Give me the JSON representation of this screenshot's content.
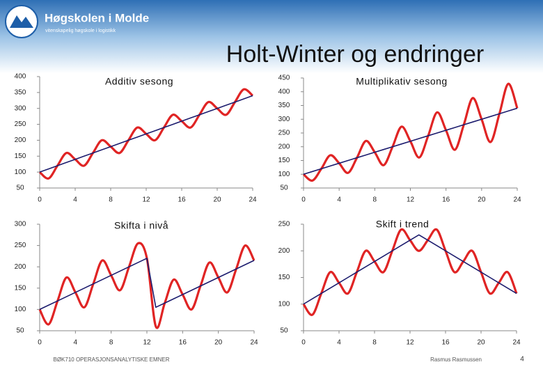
{
  "slide": {
    "title": "Holt-Winter og endringer",
    "logo_name": "Høgskolen i Molde",
    "logo_tagline": "vitenskapelig høgskole i logistikk",
    "footer_left": "BØK710 OPERASJONSANALYTISKE EMNER",
    "footer_author": "Rasmus Rasmussen",
    "page_number": 4
  },
  "chart_data": [
    {
      "type": "line",
      "title": "Additiv sesong",
      "x": [
        0,
        1,
        2,
        3,
        4,
        5,
        6,
        7,
        8,
        9,
        10,
        11,
        12,
        13,
        14,
        15,
        16,
        17,
        18,
        19,
        20,
        21,
        22,
        23,
        24
      ],
      "xlim": [
        0,
        24
      ],
      "xticks": [
        0,
        4,
        8,
        12,
        16,
        20,
        24
      ],
      "ylim": [
        50,
        400
      ],
      "yticks": [
        50,
        100,
        150,
        200,
        250,
        300,
        350,
        400
      ],
      "grid": false,
      "series": [
        {
          "color": "#e02424",
          "values": [
            100,
            80,
            120,
            160,
            140,
            120,
            160,
            200,
            180,
            160,
            200,
            240,
            220,
            200,
            240,
            280,
            260,
            240,
            280,
            320,
            300,
            280,
            320,
            360,
            340
          ]
        },
        {
          "color": "#1c1c6e",
          "values": [
            100,
            110,
            120,
            130,
            140,
            150,
            160,
            170,
            180,
            190,
            200,
            210,
            220,
            230,
            240,
            250,
            260,
            270,
            280,
            290,
            300,
            310,
            320,
            330,
            340
          ]
        }
      ]
    },
    {
      "type": "line",
      "title": "Multiplikativ sesong",
      "x": [
        0,
        1,
        2,
        3,
        4,
        5,
        6,
        7,
        8,
        9,
        10,
        11,
        12,
        13,
        14,
        15,
        16,
        17,
        18,
        19,
        20,
        21,
        22,
        23,
        24
      ],
      "xlim": [
        0,
        24
      ],
      "xticks": [
        0,
        4,
        8,
        12,
        16,
        20,
        24
      ],
      "ylim": [
        50,
        450
      ],
      "yticks": [
        50,
        100,
        150,
        200,
        250,
        300,
        350,
        400,
        450
      ],
      "grid": false,
      "series": [
        {
          "color": "#e02424",
          "values": [
            100,
            77,
            120,
            169,
            140,
            105,
            160,
            221,
            180,
            133,
            200,
            273,
            220,
            161,
            240,
            325,
            260,
            189,
            280,
            377,
            300,
            217,
            320,
            429,
            340
          ]
        },
        {
          "color": "#1c1c6e",
          "values": [
            100,
            110,
            120,
            130,
            140,
            150,
            160,
            170,
            180,
            190,
            200,
            210,
            220,
            230,
            240,
            250,
            260,
            270,
            280,
            290,
            300,
            310,
            320,
            330,
            340
          ]
        }
      ]
    },
    {
      "type": "line",
      "title": "Skifta i nivå",
      "x": [
        0,
        1,
        2,
        3,
        4,
        5,
        6,
        7,
        8,
        9,
        10,
        11,
        12,
        13,
        14,
        15,
        16,
        17,
        18,
        19,
        20,
        21,
        22,
        23,
        24
      ],
      "xlim": [
        0,
        24
      ],
      "xticks": [
        0,
        4,
        8,
        12,
        16,
        20,
        24
      ],
      "ylim": [
        50,
        300
      ],
      "yticks": [
        50,
        100,
        150,
        200,
        250,
        300
      ],
      "grid": false,
      "series": [
        {
          "color": "#e02424",
          "values": [
            100,
            65,
            120,
            175,
            140,
            105,
            160,
            215,
            180,
            145,
            200,
            255,
            220,
            60,
            115,
            170,
            135,
            100,
            155,
            210,
            175,
            140,
            195,
            250,
            215
          ]
        },
        {
          "color": "#1c1c6e",
          "values": [
            100,
            110,
            120,
            130,
            140,
            150,
            160,
            170,
            180,
            190,
            200,
            210,
            220,
            105,
            115,
            125,
            135,
            145,
            155,
            165,
            175,
            185,
            195,
            205,
            215
          ]
        }
      ]
    },
    {
      "type": "line",
      "title": "Skift i trend",
      "x": [
        0,
        1,
        2,
        3,
        4,
        5,
        6,
        7,
        8,
        9,
        10,
        11,
        12,
        13,
        14,
        15,
        16,
        17,
        18,
        19,
        20,
        21,
        22,
        23,
        24
      ],
      "xlim": [
        0,
        24
      ],
      "xticks": [
        0,
        4,
        8,
        12,
        16,
        20,
        24
      ],
      "ylim": [
        50,
        250
      ],
      "yticks": [
        50,
        100,
        150,
        200,
        250
      ],
      "grid": false,
      "series": [
        {
          "color": "#e02424",
          "values": [
            100,
            80,
            120,
            160,
            140,
            120,
            160,
            200,
            180,
            160,
            200,
            240,
            220,
            200,
            220,
            240,
            200,
            160,
            180,
            200,
            160,
            120,
            140,
            160,
            120
          ]
        },
        {
          "color": "#1c1c6e",
          "values": [
            100,
            110,
            120,
            130,
            140,
            150,
            160,
            170,
            180,
            190,
            200,
            210,
            220,
            230,
            220,
            210,
            200,
            190,
            180,
            170,
            160,
            150,
            140,
            130,
            120
          ]
        }
      ]
    }
  ]
}
